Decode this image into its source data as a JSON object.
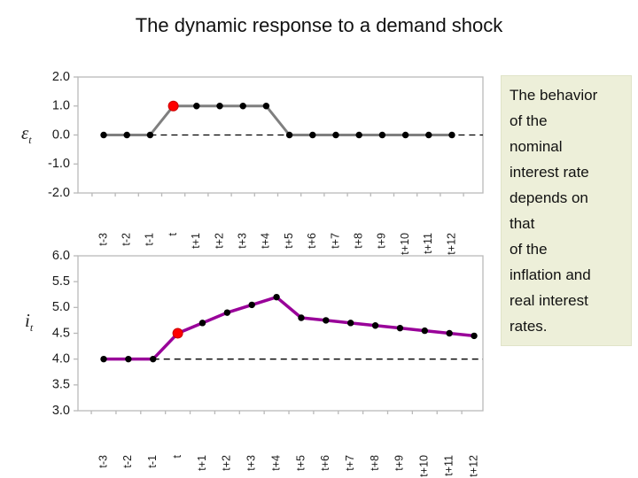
{
  "title": "The dynamic response to a demand shock",
  "sidebox": {
    "text": "The behavior\nof the\nnominal\ninterest rate\ndepends on\nthat\nof the\ninflation and\nreal interest\nrates.",
    "bg_color": "#edefd9"
  },
  "colors": {
    "shock_line": "#7f7f7f",
    "interest_line": "#990099",
    "marker": "#000000",
    "highlight_marker": "#ff0000",
    "highlight_edge": "#cc0000",
    "axis": "#b9b9b9",
    "baseline_dash": "#000000",
    "tick_label": "#1a1a1a"
  },
  "chart_data": [
    {
      "type": "line",
      "id": "demand-shock-chart",
      "ylabel": {
        "base": "ε",
        "sub": "t"
      },
      "categories": [
        "t-3",
        "t-2",
        "t-1",
        "t",
        "t+1",
        "t+2",
        "t+3",
        "t+4",
        "t+5",
        "t+6",
        "t+7",
        "t+8",
        "t+9",
        "t+10",
        "t+11",
        "t+12"
      ],
      "values": [
        0,
        0,
        0,
        1,
        1,
        1,
        1,
        1,
        0,
        0,
        0,
        0,
        0,
        0,
        0,
        0
      ],
      "ylim": [
        -2,
        2
      ],
      "ytick_values": [
        2,
        1,
        0,
        -1,
        -2
      ],
      "ytick_labels": [
        "2.0",
        "1.0",
        "0.0",
        "-1.0",
        "-2.0"
      ],
      "baseline_value": 0,
      "baseline_start_index": 2,
      "baseline_style": "dashed",
      "highlight_index": 3,
      "line_color_key": "shock_line",
      "line_width": 3,
      "grid": "off",
      "legend": "none"
    },
    {
      "type": "line",
      "id": "interest-rate-chart",
      "ylabel": {
        "base": "i",
        "sub": "t"
      },
      "categories": [
        "t-3",
        "t-2",
        "t-1",
        "t",
        "t+1",
        "t+2",
        "t+3",
        "t+4",
        "t+5",
        "t+6",
        "t+7",
        "t+8",
        "t+9",
        "t+10",
        "t+11",
        "t+12"
      ],
      "values": [
        4.0,
        4.0,
        4.0,
        4.5,
        4.7,
        4.9,
        5.05,
        5.2,
        4.8,
        4.75,
        4.7,
        4.65,
        4.6,
        4.55,
        4.5,
        4.45
      ],
      "ylim": [
        3,
        6
      ],
      "ytick_values": [
        6,
        5.5,
        5,
        4.5,
        4,
        3.5,
        3
      ],
      "ytick_labels": [
        "6.0",
        "5.5",
        "5.0",
        "4.5",
        "4.0",
        "3.5",
        "3.0"
      ],
      "baseline_value": 4.0,
      "baseline_start_index": 2,
      "baseline_style": "dashed",
      "highlight_index": 3,
      "line_color_key": "interest_line",
      "line_width": 3.5,
      "grid": "off",
      "legend": "none"
    }
  ]
}
